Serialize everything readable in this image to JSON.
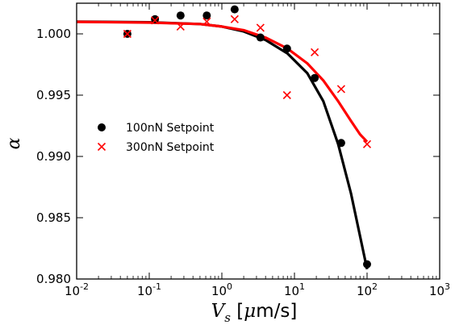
{
  "chart_data": {
    "type": "scatter",
    "x_scale": "log",
    "xlim": [
      0.01,
      1000
    ],
    "ylim": [
      0.98,
      1.0025
    ],
    "x_ticks": [
      {
        "base": "10",
        "exp": "-2"
      },
      {
        "base": "10",
        "exp": "-1"
      },
      {
        "base": "10",
        "exp": "0"
      },
      {
        "base": "10",
        "exp": "1"
      },
      {
        "base": "10",
        "exp": "2"
      },
      {
        "base": "10",
        "exp": "3"
      }
    ],
    "x_tick_values": [
      0.01,
      0.1,
      1,
      10,
      100,
      1000
    ],
    "y_ticks": [
      "0.980",
      "0.985",
      "0.990",
      "0.995",
      "1.000"
    ],
    "y_tick_values": [
      0.98,
      0.985,
      0.99,
      0.995,
      1.0
    ],
    "xlabel": {
      "symbol": "V",
      "subscript": "s",
      "open": " [",
      "mu": "μ",
      "unit": "m/s",
      "close": "]"
    },
    "ylabel": "α",
    "grid": false,
    "legend_position": "center-left",
    "series": [
      {
        "name": "100nN Setpoint",
        "marker": "circle",
        "color": "#000000",
        "points": [
          {
            "x": 0.05,
            "y": 1.0
          },
          {
            "x": 0.12,
            "y": 1.0012
          },
          {
            "x": 0.27,
            "y": 1.0015
          },
          {
            "x": 0.62,
            "y": 1.0015
          },
          {
            "x": 1.5,
            "y": 1.002
          },
          {
            "x": 3.4,
            "y": 0.9997
          },
          {
            "x": 7.9,
            "y": 0.9988
          },
          {
            "x": 19,
            "y": 0.9964
          },
          {
            "x": 44,
            "y": 0.9911
          },
          {
            "x": 100,
            "y": 0.9812
          }
        ],
        "fit": [
          {
            "x": 0.01,
            "y": 1.001
          },
          {
            "x": 0.1,
            "y": 1.00095
          },
          {
            "x": 0.5,
            "y": 1.0008
          },
          {
            "x": 1,
            "y": 1.0006
          },
          {
            "x": 2,
            "y": 1.0002
          },
          {
            "x": 4,
            "y": 0.9995
          },
          {
            "x": 8,
            "y": 0.9984
          },
          {
            "x": 15,
            "y": 0.9968
          },
          {
            "x": 25,
            "y": 0.9945
          },
          {
            "x": 40,
            "y": 0.991
          },
          {
            "x": 60,
            "y": 0.987
          },
          {
            "x": 80,
            "y": 0.9835
          },
          {
            "x": 100,
            "y": 0.9808
          }
        ]
      },
      {
        "name": "300nN Setpoint",
        "marker": "x",
        "color": "#ff0000",
        "points": [
          {
            "x": 0.05,
            "y": 1.0
          },
          {
            "x": 0.12,
            "y": 1.0011
          },
          {
            "x": 0.27,
            "y": 1.0006
          },
          {
            "x": 0.62,
            "y": 1.001
          },
          {
            "x": 1.5,
            "y": 1.0012
          },
          {
            "x": 3.4,
            "y": 1.0005
          },
          {
            "x": 7.9,
            "y": 0.995
          },
          {
            "x": 19,
            "y": 0.9985
          },
          {
            "x": 44,
            "y": 0.9955
          },
          {
            "x": 100,
            "y": 0.991
          }
        ],
        "fit": [
          {
            "x": 0.01,
            "y": 1.00098
          },
          {
            "x": 0.1,
            "y": 1.00092
          },
          {
            "x": 0.5,
            "y": 1.0008
          },
          {
            "x": 1,
            "y": 1.0006
          },
          {
            "x": 2,
            "y": 1.0003
          },
          {
            "x": 4,
            "y": 0.9997
          },
          {
            "x": 8,
            "y": 0.9988
          },
          {
            "x": 15,
            "y": 0.9976
          },
          {
            "x": 25,
            "y": 0.9962
          },
          {
            "x": 40,
            "y": 0.9945
          },
          {
            "x": 60,
            "y": 0.9929
          },
          {
            "x": 80,
            "y": 0.9918
          },
          {
            "x": 100,
            "y": 0.9912
          }
        ]
      }
    ]
  }
}
